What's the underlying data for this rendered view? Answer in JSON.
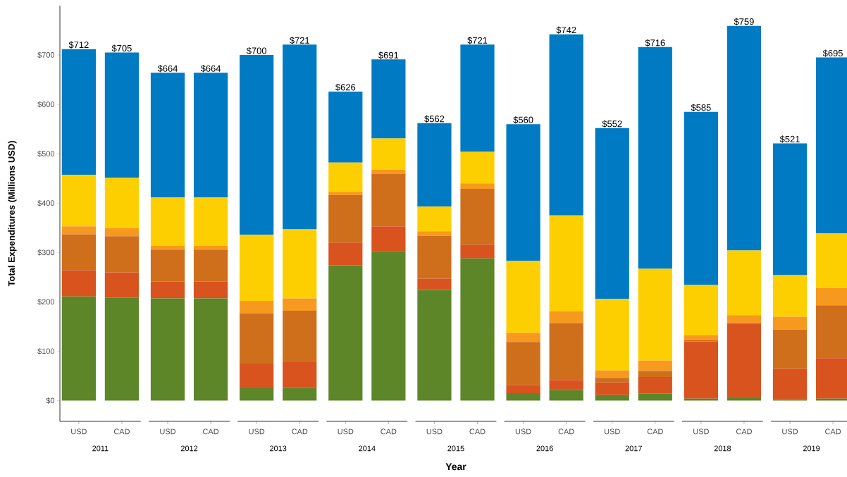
{
  "chart_data": {
    "type": "bar",
    "stacked": true,
    "xlabel": "Year",
    "ylabel": "Total Expenditures (Millions USD)",
    "categories": [
      "USD",
      "CAD",
      "USD",
      "CAD",
      "USD",
      "CAD",
      "USD",
      "CAD",
      "USD",
      "CAD",
      "USD",
      "CAD",
      "USD",
      "CAD",
      "USD",
      "CAD",
      "USD",
      "CAD"
    ],
    "annotations": [
      "2011",
      "2012",
      "2013",
      "2014",
      "2015",
      "2016",
      "2017",
      "2018",
      "2019"
    ],
    "series": [
      {
        "color": "#5d8629",
        "values": [
          211,
          208,
          207,
          207,
          25,
          26,
          274,
          303,
          224,
          288,
          15,
          21,
          11,
          14,
          4,
          5,
          3,
          4
        ]
      },
      {
        "color": "#d9531e",
        "values": [
          53,
          52,
          34,
          34,
          50,
          52,
          46,
          50,
          23,
          28,
          17,
          21,
          26,
          34,
          116,
          150,
          61,
          82
        ]
      },
      {
        "color": "#cf6f1c",
        "values": [
          73,
          73,
          65,
          65,
          102,
          104,
          96,
          106,
          87,
          113,
          87,
          115,
          9,
          12,
          2,
          2,
          80,
          107
        ]
      },
      {
        "color": "#f7991f",
        "values": [
          16,
          16,
          8,
          8,
          25,
          25,
          7,
          9,
          9,
          11,
          18,
          24,
          15,
          21,
          10,
          16,
          26,
          35
        ]
      },
      {
        "color": "#fecf00",
        "values": [
          104,
          102,
          98,
          98,
          134,
          140,
          59,
          63,
          50,
          64,
          146,
          194,
          145,
          186,
          102,
          131,
          84,
          111
        ]
      },
      {
        "color": "#007bc3",
        "values": [
          255,
          254,
          252,
          252,
          364,
          374,
          144,
          160,
          169,
          217,
          277,
          367,
          346,
          449,
          351,
          455,
          267,
          356
        ]
      }
    ],
    "totals": [
      "$712",
      "$705",
      "$664",
      "$664",
      "$700",
      "$721",
      "$626",
      "$691",
      "$562",
      "$721",
      "$560",
      "$742",
      "$552",
      "$716",
      "$585",
      "$759",
      "$521",
      "$695"
    ],
    "ylim": [
      -42,
      800
    ],
    "yticks": [
      {
        "value": 0,
        "label": "$0"
      },
      {
        "value": 100,
        "label": "$100"
      },
      {
        "value": 200,
        "label": "$200"
      },
      {
        "value": 300,
        "label": "$300"
      },
      {
        "value": 400,
        "label": "$400"
      },
      {
        "value": 500,
        "label": "$500"
      },
      {
        "value": 600,
        "label": "$600"
      },
      {
        "value": 700,
        "label": "$700"
      }
    ]
  }
}
